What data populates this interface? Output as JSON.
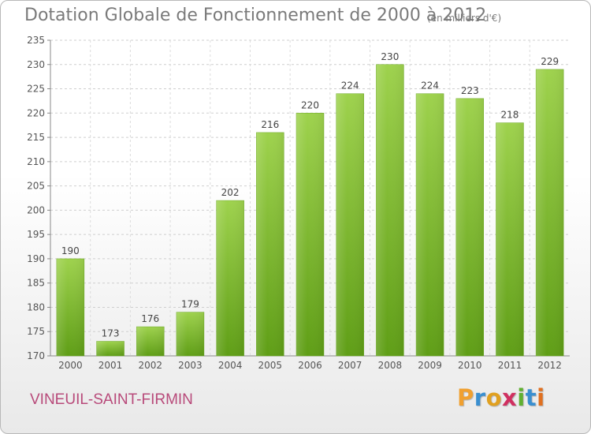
{
  "header": {
    "title": "Dotation Globale de Fonctionnement de 2000 à 2012",
    "subtitle": "(en milliers d'€)"
  },
  "commune": "VINEUIL-SAINT-FIRMIN",
  "logo": {
    "letters": [
      "P",
      "r",
      "o",
      "x",
      "i",
      "t",
      "i"
    ],
    "colors": [
      "#f0a030",
      "#3a8fd0",
      "#e0a020",
      "#d03060",
      "#60b030",
      "#3a8fd0",
      "#e07020"
    ]
  },
  "chart_data": {
    "type": "bar",
    "categories": [
      "2000",
      "2001",
      "2002",
      "2003",
      "2004",
      "2005",
      "2006",
      "2007",
      "2008",
      "2009",
      "2010",
      "2011",
      "2012"
    ],
    "values": [
      190,
      173,
      176,
      179,
      202,
      216,
      220,
      224,
      230,
      224,
      223,
      218,
      229
    ],
    "ylim": [
      170,
      235
    ],
    "yticks": [
      170,
      175,
      180,
      185,
      190,
      195,
      200,
      205,
      210,
      215,
      220,
      225,
      230,
      235
    ],
    "grid": true,
    "bar_color": "#7dbb2e",
    "data_labels": true
  }
}
